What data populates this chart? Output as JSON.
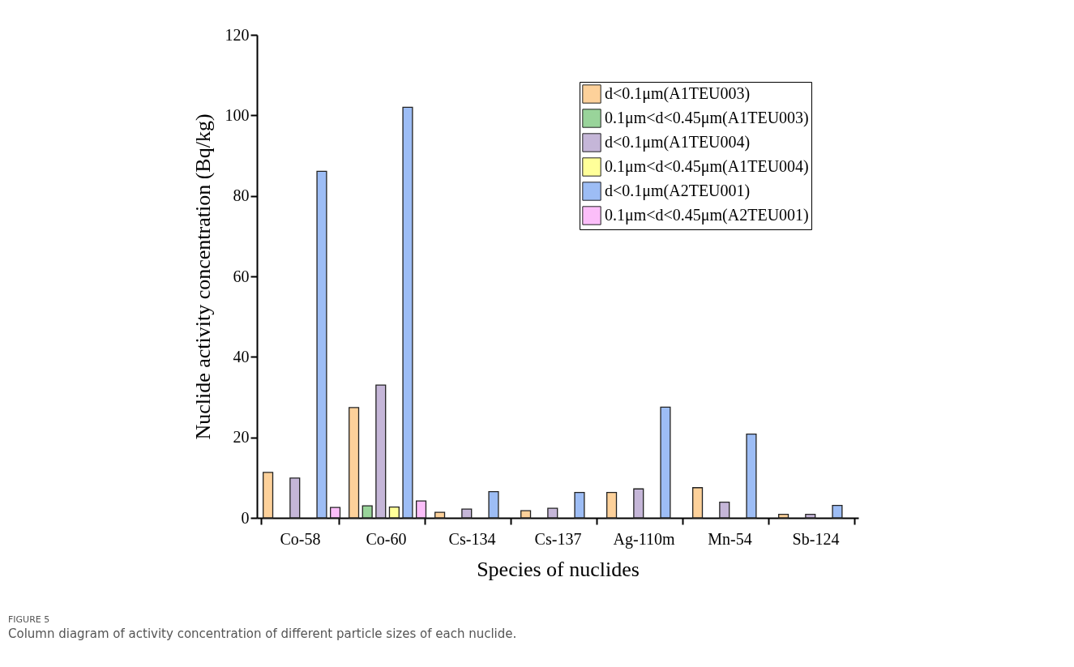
{
  "chart_data": {
    "type": "bar",
    "xlabel": "Species of nuclides",
    "ylabel": "Nuclide activity concentration (Bq/kg)",
    "categories": [
      "Co-58",
      "Co-60",
      "Cs-134",
      "Cs-137",
      "Ag-110m",
      "Mn-54",
      "Sb-124"
    ],
    "series": [
      {
        "name": "d<0.1μm(A1TEU003)",
        "color": "#fdd19a",
        "values": [
          11.3,
          27.4,
          1.4,
          1.8,
          6.3,
          7.5,
          0.9
        ]
      },
      {
        "name": "0.1μm<d<0.45μm(A1TEU003)",
        "color": "#99d49a",
        "values": [
          null,
          3,
          null,
          null,
          null,
          null,
          null
        ]
      },
      {
        "name": "d<0.1μm(A1TEU004)",
        "color": "#c5b6d8",
        "values": [
          9.9,
          33,
          2.2,
          2.4,
          7.2,
          3.9,
          0.9
        ]
      },
      {
        "name": "0.1μm<d<0.45μm(A1TEU004)",
        "color": "#ffff99",
        "values": [
          null,
          2.7,
          null,
          null,
          null,
          null,
          null
        ]
      },
      {
        "name": "d<0.1μm(A2TEU001)",
        "color": "#9dbdf5",
        "values": [
          86.1,
          102,
          6.5,
          6.3,
          27.5,
          20.8,
          3.1
        ]
      },
      {
        "name": "0.1μm<d<0.45μm(A2TEU001)",
        "color": "#fbbef9",
        "values": [
          2.6,
          4.2,
          null,
          null,
          null,
          null,
          null
        ]
      }
    ],
    "ylim": [
      0,
      120
    ],
    "yticks": [
      0,
      20,
      40,
      60,
      80,
      100,
      120
    ],
    "grid": false,
    "legend": "top right",
    "annotations": [
      "FIGURE 5",
      "Column diagram of activity concentration of different particle sizes of each nuclide."
    ]
  }
}
